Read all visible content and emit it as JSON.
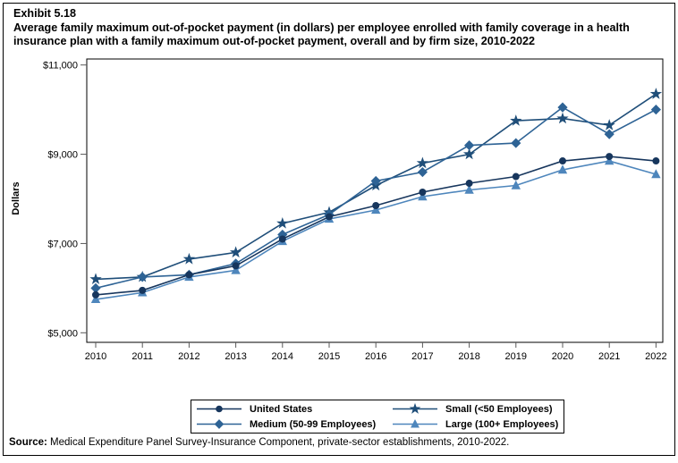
{
  "header": {
    "exhibit": "Exhibit 5.18",
    "title": "Average family maximum out-of-pocket payment (in dollars) per employee enrolled with family coverage in a health insurance plan with a family maximum out-of-pocket payment, overall and by firm size, 2010-2022"
  },
  "chart_data": {
    "type": "line",
    "x": [
      2010,
      2011,
      2012,
      2013,
      2014,
      2015,
      2016,
      2017,
      2018,
      2019,
      2020,
      2021,
      2022
    ],
    "xlabel": "",
    "ylabel": "Dollars",
    "ylim": [
      5000,
      11000
    ],
    "ytick_interval": 2000,
    "ytick_labels": [
      "$5,000",
      "$7,000",
      "$9,000",
      "$11,000"
    ],
    "grid": false,
    "legend_position": "bottom-boxed",
    "series": [
      {
        "name": "United States",
        "marker": "circle",
        "color": "#17365D",
        "values": [
          5850,
          5950,
          6300,
          6500,
          7100,
          7600,
          7850,
          8150,
          8350,
          8500,
          8850,
          8950,
          8850
        ]
      },
      {
        "name": "Small (<50 Employees)",
        "marker": "star",
        "color": "#1F4E79",
        "values": [
          6200,
          6250,
          6650,
          6800,
          7450,
          7700,
          8300,
          8800,
          9000,
          9750,
          9800,
          9650,
          10350
        ]
      },
      {
        "name": "Medium (50-99 Employees)",
        "marker": "diamond",
        "color": "#2E6395",
        "values": [
          6000,
          6250,
          6300,
          6550,
          7200,
          7650,
          8400,
          8600,
          9200,
          9250,
          10050,
          9450,
          10000
        ]
      },
      {
        "name": "Large (100+ Employees)",
        "marker": "triangle",
        "color": "#4E86BC",
        "values": [
          5750,
          5900,
          6250,
          6400,
          7050,
          7550,
          7750,
          8050,
          8200,
          8300,
          8650,
          8850,
          8550
        ]
      }
    ]
  },
  "footer": {
    "source_label": "Source:",
    "source_text": " Medical Expenditure Panel Survey-Insurance Component, private-sector establishments, 2010-2022."
  }
}
